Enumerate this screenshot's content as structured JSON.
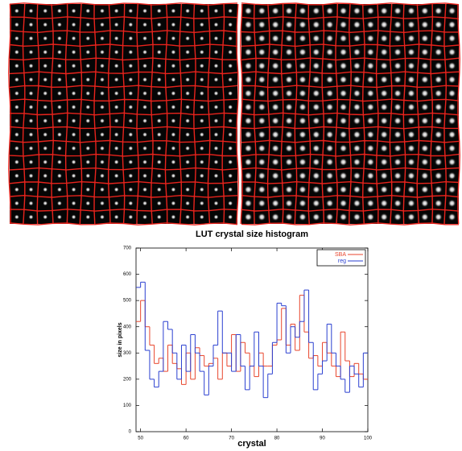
{
  "chart_data": {
    "type": "histogram",
    "title": "LUT crystal size histogram",
    "x_label": "crystal",
    "y_label": "size in pixels",
    "bins": [
      49,
      50,
      51,
      52,
      53,
      54,
      55,
      56,
      57,
      58,
      59,
      60,
      61,
      62,
      63,
      64,
      65,
      66,
      67,
      68,
      69,
      70,
      71,
      72,
      73,
      74,
      75,
      76,
      77,
      78,
      79,
      80,
      81,
      82,
      83,
      84,
      85,
      86,
      87,
      88,
      89,
      90,
      91,
      92,
      93,
      94,
      95,
      96,
      97,
      98,
      99,
      100
    ],
    "series": [
      {
        "name": "SBA",
        "color": "#e8452c",
        "values": [
          420,
          500,
          400,
          330,
          260,
          280,
          230,
          330,
          260,
          240,
          180,
          300,
          200,
          320,
          290,
          250,
          260,
          280,
          200,
          300,
          250,
          370,
          230,
          340,
          300,
          250,
          210,
          300,
          250,
          250,
          330,
          350,
          470,
          330,
          410,
          310,
          520,
          380,
          280,
          290,
          250,
          340,
          300,
          250,
          210,
          380,
          270,
          210,
          260,
          220,
          200
        ]
      },
      {
        "name": "reg",
        "color": "#2a3fd0",
        "values": [
          550,
          570,
          310,
          200,
          170,
          230,
          420,
          390,
          300,
          200,
          330,
          230,
          370,
          300,
          230,
          140,
          250,
          330,
          460,
          300,
          300,
          230,
          370,
          250,
          160,
          250,
          380,
          250,
          130,
          220,
          340,
          490,
          480,
          300,
          400,
          360,
          420,
          540,
          340,
          160,
          220,
          270,
          410,
          300,
          250,
          200,
          150,
          250,
          220,
          170,
          300
        ]
      }
    ],
    "xlim": [
      49,
      100
    ],
    "xticks": [
      50,
      60,
      70,
      80,
      90,
      100
    ],
    "ylim": [
      0,
      700
    ],
    "yticks": [
      0,
      100,
      200,
      300,
      400,
      500,
      600,
      700
    ],
    "legend": "top-right"
  }
}
